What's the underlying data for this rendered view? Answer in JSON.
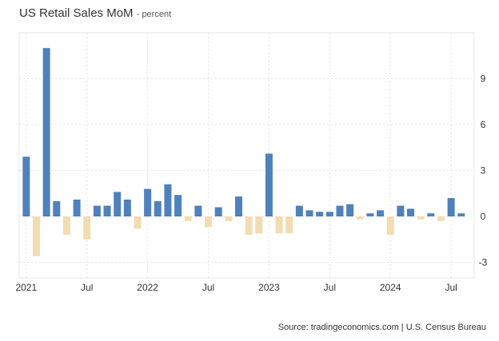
{
  "chart_data": {
    "type": "bar",
    "title": "US Retail Sales MoM",
    "subtitle": "- percent",
    "source": "Source: tradingeconomics.com | U.S. Census Bureau",
    "positive_color": "#4f81bd",
    "negative_color": "#f2dcb1",
    "grid": true,
    "ylim": [
      -4,
      12
    ],
    "y_ticks": [
      9,
      6,
      3,
      0,
      -3
    ],
    "x_ticks": [
      {
        "label": "2021",
        "index": 0
      },
      {
        "label": "Jul",
        "index": 6
      },
      {
        "label": "2022",
        "index": 12
      },
      {
        "label": "Jul",
        "index": 18
      },
      {
        "label": "2023",
        "index": 24
      },
      {
        "label": "Jul",
        "index": 30
      },
      {
        "label": "2024",
        "index": 36
      },
      {
        "label": "Jul",
        "index": 42
      }
    ],
    "categories": [
      "2021-01",
      "2021-02",
      "2021-03",
      "2021-04",
      "2021-05",
      "2021-06",
      "2021-07",
      "2021-08",
      "2021-09",
      "2021-10",
      "2021-11",
      "2021-12",
      "2022-01",
      "2022-02",
      "2022-03",
      "2022-04",
      "2022-05",
      "2022-06",
      "2022-07",
      "2022-08",
      "2022-09",
      "2022-10",
      "2022-11",
      "2022-12",
      "2023-01",
      "2023-02",
      "2023-03",
      "2023-04",
      "2023-05",
      "2023-06",
      "2023-07",
      "2023-08",
      "2023-09",
      "2023-10",
      "2023-11",
      "2023-12",
      "2024-01",
      "2024-02",
      "2024-03",
      "2024-04",
      "2024-05",
      "2024-06",
      "2024-07",
      "2024-08"
    ],
    "values": [
      3.9,
      -2.6,
      11.0,
      1.0,
      -1.2,
      1.1,
      -1.5,
      0.7,
      0.7,
      1.6,
      1.1,
      -0.8,
      1.8,
      1.0,
      2.1,
      1.4,
      -0.3,
      0.7,
      -0.7,
      0.6,
      -0.3,
      1.3,
      -1.2,
      -1.1,
      4.1,
      -1.1,
      -1.1,
      0.7,
      0.4,
      0.3,
      0.3,
      0.7,
      0.8,
      -0.2,
      0.2,
      0.4,
      -1.2,
      0.7,
      0.5,
      -0.2,
      0.2,
      -0.3,
      1.2,
      0.2
    ]
  }
}
